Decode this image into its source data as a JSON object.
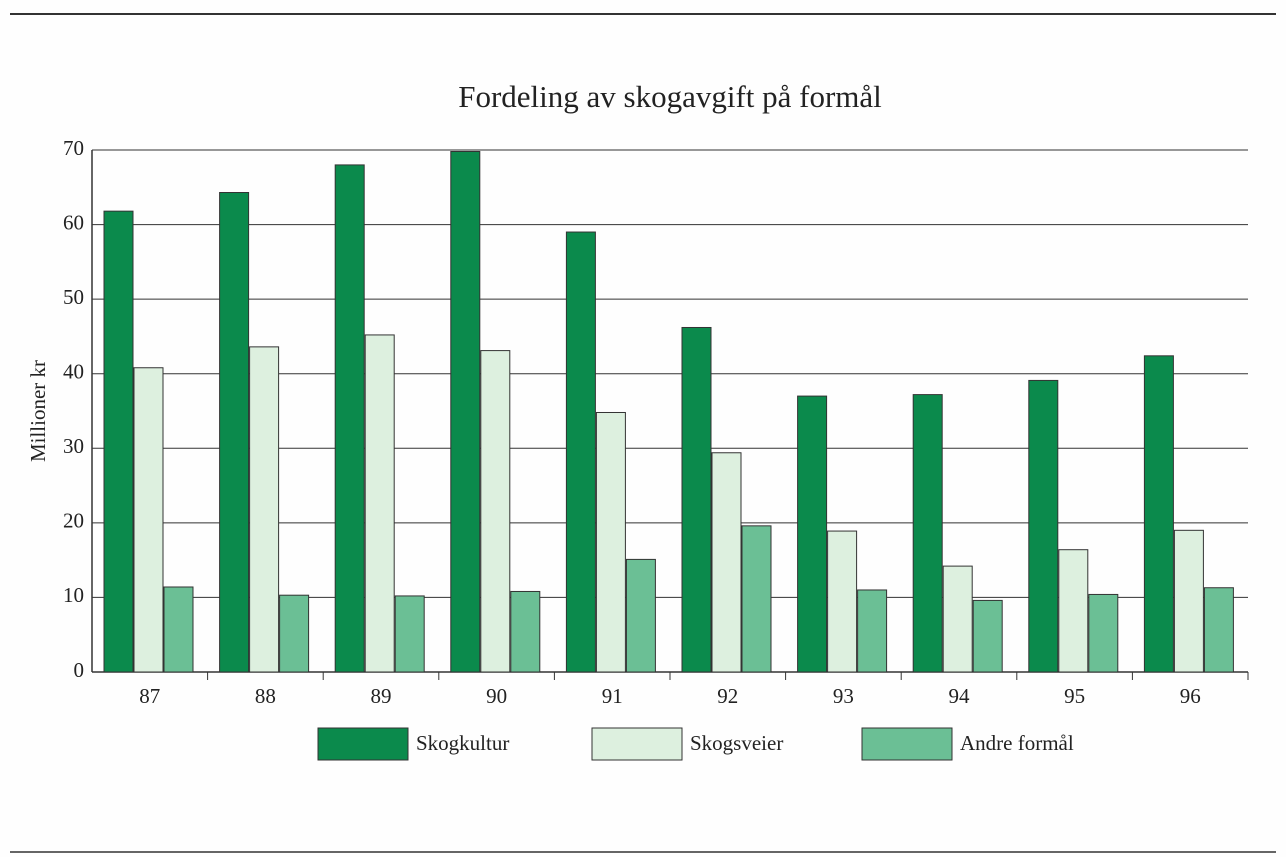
{
  "chart_data": {
    "type": "bar",
    "title": "Fordeling av skogavgift på formål",
    "y_label": "Millioner kr",
    "categories": [
      "87",
      "88",
      "89",
      "90",
      "91",
      "92",
      "93",
      "94",
      "95",
      "96"
    ],
    "series": [
      {
        "name": "Skogkultur",
        "color": "#0b8a4c",
        "values": [
          61.8,
          64.3,
          68,
          69.8,
          59,
          46.2,
          37,
          37.2,
          39.1,
          42.4
        ]
      },
      {
        "name": "Skogsveier",
        "color": "#ddf0df",
        "values": [
          40.8,
          43.6,
          45.2,
          43.1,
          34.8,
          29.4,
          18.9,
          14.2,
          16.4,
          19.0
        ]
      },
      {
        "name": "Andre formål",
        "color": "#6bbf95",
        "values": [
          11.4,
          10.3,
          10.2,
          10.8,
          15.1,
          19.6,
          11.0,
          9.6,
          10.4,
          11.3
        ]
      }
    ],
    "ylim": [
      0,
      70
    ],
    "yticks": [
      0,
      10,
      20,
      30,
      40,
      50,
      60,
      70
    ],
    "grid": true
  }
}
